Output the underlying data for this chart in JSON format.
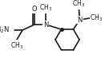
{
  "bg_color": "#ffffff",
  "line_color": "#1a1a1a",
  "line_width": 1.2,
  "text_color": "#1a1a1a",
  "font_size": 6.0,
  "figsize": [
    1.31,
    0.77
  ],
  "dpi": 100,
  "xlim": [
    0,
    131
  ],
  "ylim": [
    0,
    77
  ]
}
